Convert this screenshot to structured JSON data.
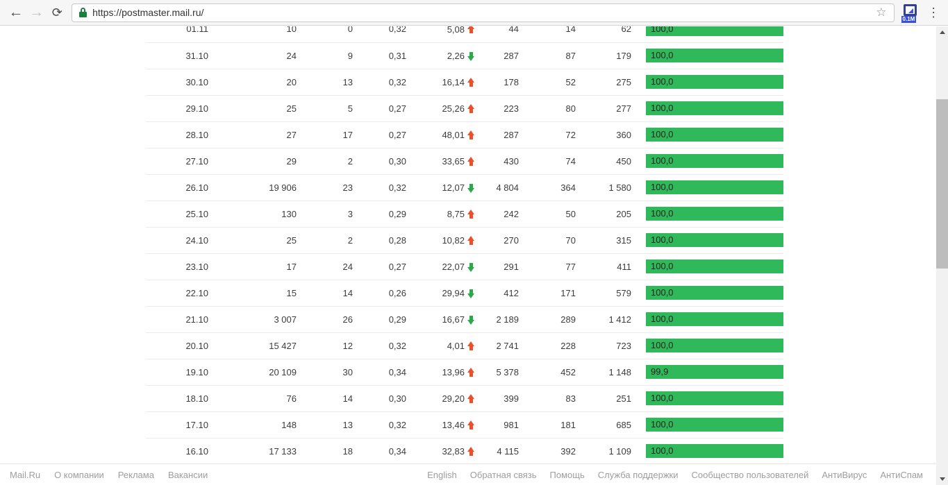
{
  "browser": {
    "url": "https://postmaster.mail.ru/",
    "extension_badge": "0.1M"
  },
  "icons": {
    "back": "←",
    "forward": "→",
    "refresh": "⟳",
    "star": "☆",
    "menu": "⋮"
  },
  "colors": {
    "bar-green": "#30b95a",
    "arrow-up": "#e8512c",
    "arrow-down": "#2ba84a"
  },
  "table": {
    "rows": [
      {
        "date": "01.11",
        "v1": "10",
        "v2": "0",
        "v3": "0,32",
        "delta": "5,08",
        "trend": "up",
        "v4": "44",
        "v5": "14",
        "v6": "62",
        "bar_label": "100,0",
        "bar_pct": 100
      },
      {
        "date": "31.10",
        "v1": "24",
        "v2": "9",
        "v3": "0,31",
        "delta": "2,26",
        "trend": "down",
        "v4": "287",
        "v5": "87",
        "v6": "179",
        "bar_label": "100,0",
        "bar_pct": 100
      },
      {
        "date": "30.10",
        "v1": "20",
        "v2": "13",
        "v3": "0,32",
        "delta": "16,14",
        "trend": "up",
        "v4": "178",
        "v5": "52",
        "v6": "275",
        "bar_label": "100,0",
        "bar_pct": 100
      },
      {
        "date": "29.10",
        "v1": "25",
        "v2": "5",
        "v3": "0,27",
        "delta": "25,26",
        "trend": "up",
        "v4": "223",
        "v5": "80",
        "v6": "277",
        "bar_label": "100,0",
        "bar_pct": 100
      },
      {
        "date": "28.10",
        "v1": "27",
        "v2": "17",
        "v3": "0,27",
        "delta": "48,01",
        "trend": "up",
        "v4": "287",
        "v5": "72",
        "v6": "360",
        "bar_label": "100,0",
        "bar_pct": 100
      },
      {
        "date": "27.10",
        "v1": "29",
        "v2": "2",
        "v3": "0,30",
        "delta": "33,65",
        "trend": "up",
        "v4": "430",
        "v5": "74",
        "v6": "450",
        "bar_label": "100,0",
        "bar_pct": 100
      },
      {
        "date": "26.10",
        "v1": "19 906",
        "v2": "23",
        "v3": "0,32",
        "delta": "12,07",
        "trend": "down",
        "v4": "4 804",
        "v5": "364",
        "v6": "1 580",
        "bar_label": "100,0",
        "bar_pct": 100
      },
      {
        "date": "25.10",
        "v1": "130",
        "v2": "3",
        "v3": "0,29",
        "delta": "8,75",
        "trend": "up",
        "v4": "242",
        "v5": "50",
        "v6": "205",
        "bar_label": "100,0",
        "bar_pct": 100
      },
      {
        "date": "24.10",
        "v1": "25",
        "v2": "2",
        "v3": "0,28",
        "delta": "10,82",
        "trend": "up",
        "v4": "270",
        "v5": "70",
        "v6": "315",
        "bar_label": "100,0",
        "bar_pct": 100
      },
      {
        "date": "23.10",
        "v1": "17",
        "v2": "24",
        "v3": "0,27",
        "delta": "22,07",
        "trend": "down",
        "v4": "291",
        "v5": "77",
        "v6": "411",
        "bar_label": "100,0",
        "bar_pct": 100
      },
      {
        "date": "22.10",
        "v1": "15",
        "v2": "14",
        "v3": "0,26",
        "delta": "29,94",
        "trend": "down",
        "v4": "412",
        "v5": "171",
        "v6": "579",
        "bar_label": "100,0",
        "bar_pct": 100
      },
      {
        "date": "21.10",
        "v1": "3 007",
        "v2": "26",
        "v3": "0,29",
        "delta": "16,67",
        "trend": "down",
        "v4": "2 189",
        "v5": "289",
        "v6": "1 412",
        "bar_label": "100,0",
        "bar_pct": 100
      },
      {
        "date": "20.10",
        "v1": "15 427",
        "v2": "12",
        "v3": "0,32",
        "delta": "4,01",
        "trend": "up",
        "v4": "2 741",
        "v5": "228",
        "v6": "723",
        "bar_label": "100,0",
        "bar_pct": 100
      },
      {
        "date": "19.10",
        "v1": "20 109",
        "v2": "30",
        "v3": "0,34",
        "delta": "13,96",
        "trend": "up",
        "v4": "5 378",
        "v5": "452",
        "v6": "1 148",
        "bar_label": "99,9",
        "bar_pct": 99.9
      },
      {
        "date": "18.10",
        "v1": "76",
        "v2": "14",
        "v3": "0,30",
        "delta": "29,20",
        "trend": "up",
        "v4": "399",
        "v5": "83",
        "v6": "251",
        "bar_label": "100,0",
        "bar_pct": 100
      },
      {
        "date": "17.10",
        "v1": "148",
        "v2": "13",
        "v3": "0,32",
        "delta": "13,46",
        "trend": "up",
        "v4": "981",
        "v5": "181",
        "v6": "685",
        "bar_label": "100,0",
        "bar_pct": 100
      },
      {
        "date": "16.10",
        "v1": "17 133",
        "v2": "18",
        "v3": "0,34",
        "delta": "32,83",
        "trend": "up",
        "v4": "4 115",
        "v5": "392",
        "v6": "1 109",
        "bar_label": "100,0",
        "bar_pct": 100
      }
    ]
  },
  "footer": {
    "left_links": [
      "Mail.Ru",
      "О компании",
      "Реклама",
      "Вакансии"
    ],
    "right_links": [
      "English",
      "Обратная связь",
      "Помощь",
      "Служба поддержки",
      "Сообщество пользователей",
      "АнтиВирус",
      "АнтиСпам"
    ]
  }
}
